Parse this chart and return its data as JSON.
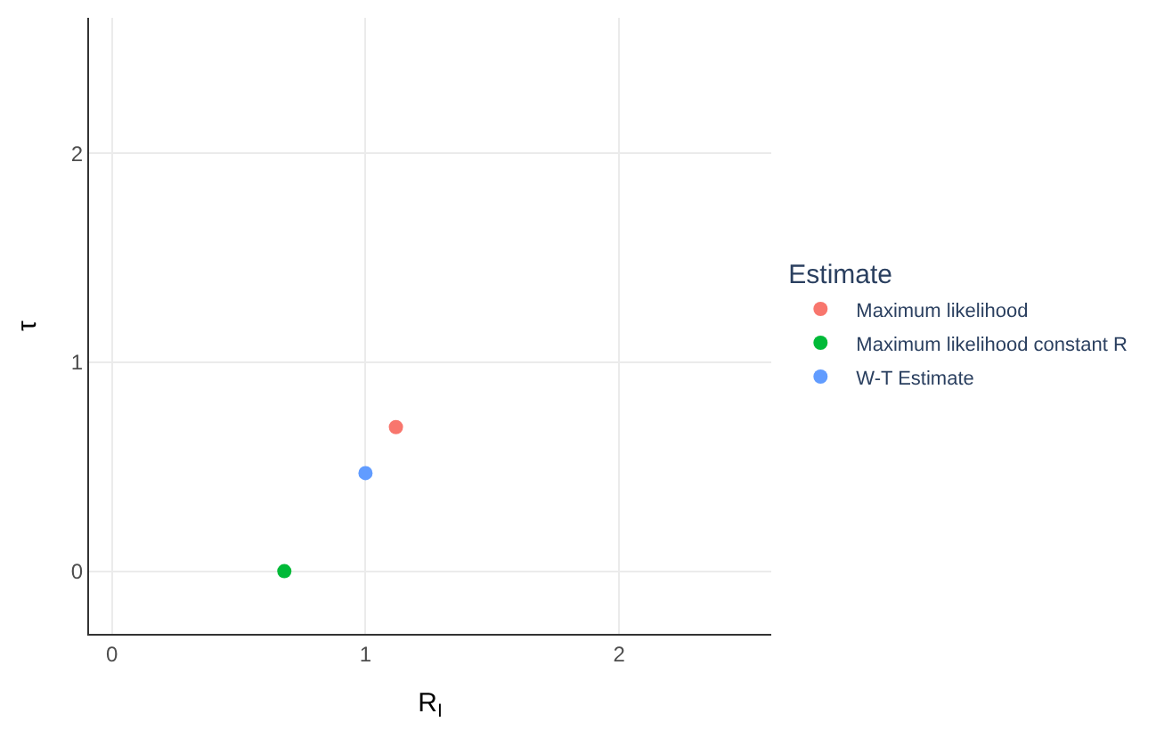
{
  "chart_data": {
    "type": "scatter",
    "xlabel": "R$_{I}$",
    "ylabel": "τ",
    "legend_title": "Estimate",
    "series": [
      {
        "name": "Maximum likelihood",
        "color": "#f8766d",
        "x": [
          1.12
        ],
        "values": [
          0.69
        ]
      },
      {
        "name": "Maximum likelihood constant R",
        "color": "#00ba38",
        "x": [
          0.68
        ],
        "values": [
          0.0
        ]
      },
      {
        "name": "W-T Estimate",
        "color": "#619cff",
        "x": [
          1.0
        ],
        "values": [
          0.47
        ]
      }
    ],
    "xlim": [
      -0.09,
      2.6
    ],
    "ylim": [
      -0.3,
      2.65
    ],
    "xticks": [
      0,
      1,
      2
    ],
    "yticks": [
      0,
      1,
      2
    ],
    "grid": true,
    "legend": "right",
    "marker": "circle"
  }
}
